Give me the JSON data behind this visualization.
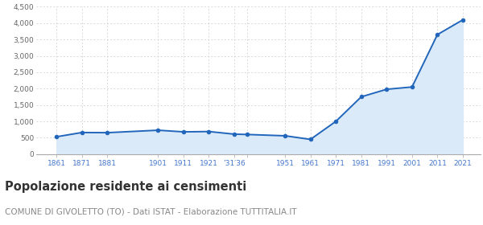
{
  "years": [
    1861,
    1871,
    1881,
    1901,
    1911,
    1921,
    1931,
    1936,
    1951,
    1961,
    1971,
    1981,
    1991,
    2001,
    2011,
    2021
  ],
  "population": [
    530,
    660,
    655,
    730,
    680,
    690,
    610,
    600,
    560,
    450,
    1000,
    1750,
    1980,
    2050,
    3650,
    4100
  ],
  "line_color": "#2266bb",
  "fill_color": "#daeaf8",
  "marker_color": "#2266bb",
  "grid_color": "#cccccc",
  "axis_line_color": "#aaaaaa",
  "title": "Popolazione residente ai censimenti",
  "subtitle": "COMUNE DI GIVOLETTO (TO) - Dati ISTAT - Elaborazione TUTTITALIA.IT",
  "title_color": "#333333",
  "subtitle_color": "#888888",
  "tick_label_color": "#4477cc",
  "ytick_label_color": "#666666",
  "ylim": [
    0,
    4500
  ],
  "yticks": [
    0,
    500,
    1000,
    1500,
    2000,
    2500,
    3000,
    3500,
    4000,
    4500
  ],
  "background_color": "#ffffff",
  "title_fontsize": 10.5,
  "subtitle_fontsize": 7.5,
  "tick_positions": [
    1861,
    1871,
    1881,
    1901,
    1911,
    1921,
    1931,
    1936,
    1951,
    1961,
    1971,
    1981,
    1991,
    2001,
    2011,
    2021
  ],
  "tick_labels": [
    "1861",
    "1871",
    "1881",
    "1901",
    "1911",
    "1921",
    "’31′36",
    "",
    "1951",
    "1961",
    "1971",
    "1981",
    "1991",
    "2001",
    "2011",
    "2021"
  ]
}
